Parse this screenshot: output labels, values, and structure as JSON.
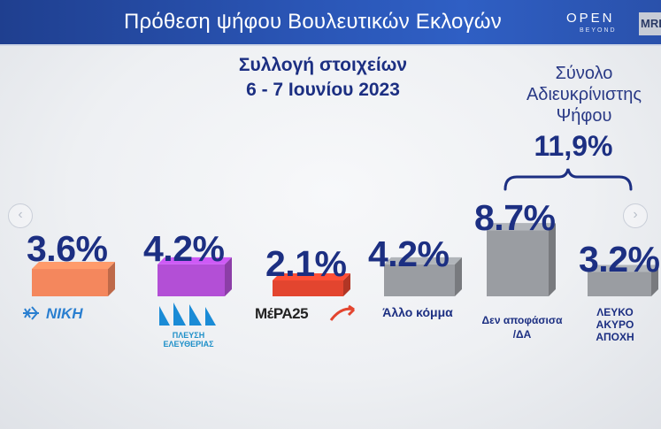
{
  "header": {
    "title": "Πρόθεση ψήφου Βουλευτικών Εκλογών",
    "logo_open": "OPEN",
    "logo_beyond": "BEYOND",
    "logo_mrb": "MRB"
  },
  "subtitle": {
    "line1": "Συλλογή στοιχείων",
    "line2": "6 - 7 Ιουνίου 2023"
  },
  "total_unclear": {
    "line1": "Σύνολο",
    "line2": "Αδιευκρίνιστης",
    "line3": "Ψήφου",
    "value": "11,9%"
  },
  "nav": {
    "prev": "‹",
    "next": "›"
  },
  "colors": {
    "header": "#2a55b5",
    "text": "#1c2f82",
    "niki": "#f4875d",
    "pleusi": "#b34fd6",
    "mera25": "#e3452f",
    "grey": "#9a9da2"
  },
  "chart_data": {
    "type": "bar",
    "categories": [
      "ΝΙΚΗ",
      "ΠΛΕΥΣΗ ΕΛΕΥΘΕΡΙΑΣ",
      "ΜέΡΑ25",
      "Άλλο κόμμα",
      "Δεν αποφάσισα /ΔΑ",
      "ΛΕΥΚΟ ΑΚΥΡΟ ΑΠΟΧΗ"
    ],
    "values": [
      3.6,
      4.2,
      2.1,
      4.2,
      8.7,
      3.2
    ],
    "value_labels": [
      "3.6%",
      "4.2%",
      "2.1%",
      "4.2%",
      "8.7%",
      "3.2%"
    ],
    "bar_colors": [
      "#f4875d",
      "#b34fd6",
      "#e3452f",
      "#9a9da2",
      "#9a9da2",
      "#9a9da2"
    ],
    "unit": "%",
    "annotation": "Σύνολο Αδιευκρίνιστης Ψήφου 11,9%"
  },
  "labels": {
    "niki": "ΝΙΚΗ",
    "pleusi_line1": "ΠΛΕΥΣΗ",
    "pleusi_line2": "ΕΛΕΥΘΕΡΙΑΣ",
    "mera": "ΜέΡΑ25",
    "allo": "Άλλο κόμμα",
    "den_line1": "Δεν αποφάσισα",
    "den_line2": "/ΔΑ",
    "lefko_line1": "ΛΕΥΚΟ",
    "lefko_line2": "ΑΚΥΡΟ",
    "lefko_line3": "ΑΠΟΧΗ"
  }
}
